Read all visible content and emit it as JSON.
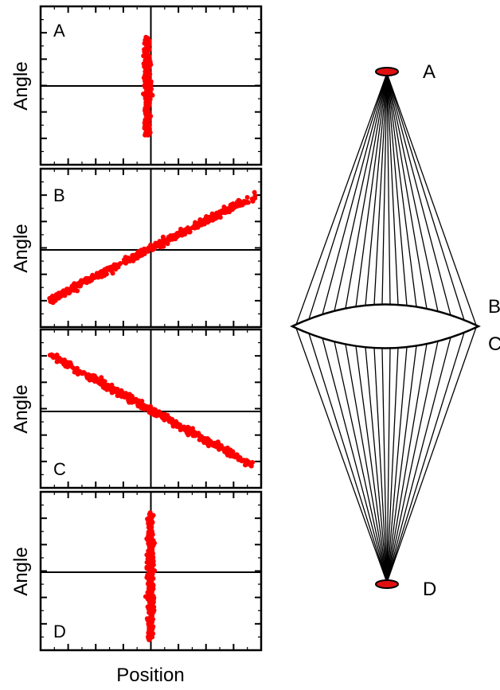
{
  "colors": {
    "marker": "#ff0000",
    "axis": "#000000",
    "background": "#ffffff"
  },
  "phase_plots": {
    "ylabel": "Angle",
    "xlabel": "Position",
    "panels": [
      {
        "label": "A",
        "shape": "narrow vertical cloud (focused)"
      },
      {
        "label": "B",
        "shape": "positive-slope line"
      },
      {
        "label": "C",
        "shape": "negative-slope line"
      },
      {
        "label": "D",
        "shape": "narrow vertical cloud (focused)"
      }
    ]
  },
  "ray_diagram": {
    "labels": {
      "top_focus": "A",
      "lens_top": "B",
      "lens_bottom": "C",
      "bottom_focus": "D"
    }
  }
}
